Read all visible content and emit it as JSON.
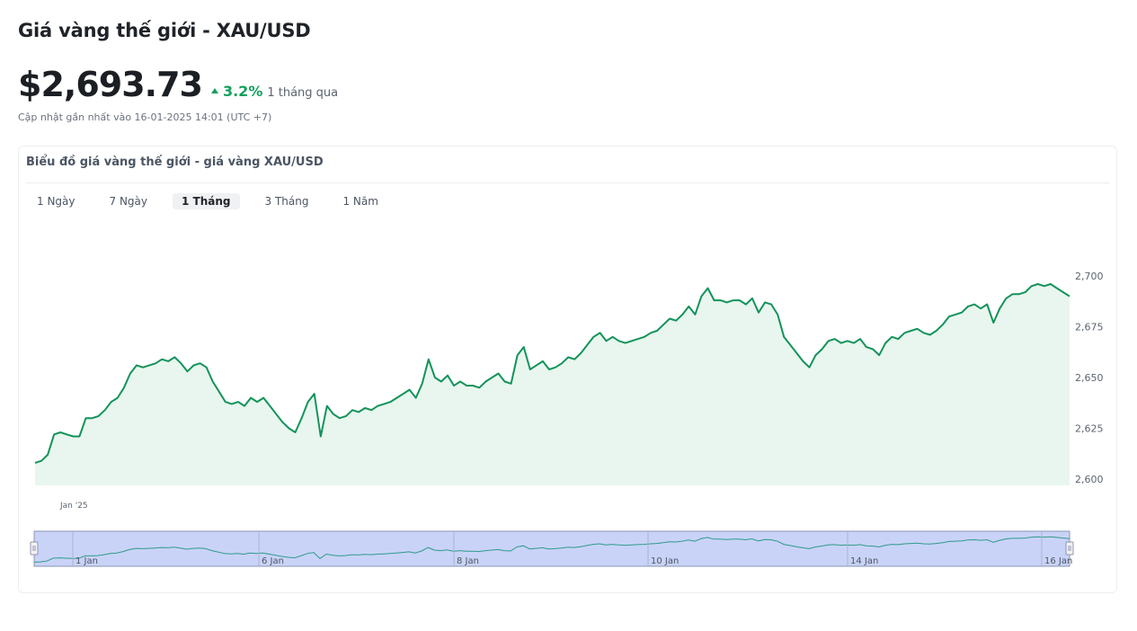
{
  "header": {
    "title": "Giá vàng thế giới - XAU/USD",
    "price": "$2,693.73",
    "change": "3.2%",
    "period": "1 tháng qua",
    "updated": "Cập nhật gần nhất vào 16-01-2025 14:01 (UTC +7)"
  },
  "card": {
    "title": "Biểu đồ giá vàng thế giới - giá vàng XAU/USD",
    "tabs": [
      {
        "label": "1 Ngày",
        "active": false
      },
      {
        "label": "7 Ngày",
        "active": false
      },
      {
        "label": "1 Tháng",
        "active": true
      },
      {
        "label": "3 Tháng",
        "active": false
      },
      {
        "label": "1 Năm",
        "active": false
      }
    ]
  },
  "colors": {
    "line": "#13935a",
    "area": "#e8f6ef",
    "up": "#13a05b",
    "navigator_fill": "#c9d3f7",
    "navigator_border": "#8d96b3"
  },
  "chart_data": {
    "type": "line",
    "title": "",
    "xlabel": "",
    "ylabel": "",
    "ylim": [
      2600,
      2700
    ],
    "y_ticks": [
      2600,
      2625,
      2650,
      2675,
      2700
    ],
    "x_label_main": "Jan '25",
    "navigator_labels": [
      "1 Jan",
      "6 Jan",
      "8 Jan",
      "10 Jan",
      "14 Jan",
      "16 Jan"
    ],
    "series": [
      {
        "values": [
          2608,
          2609,
          2612,
          2622,
          2623,
          2622,
          2621,
          2621,
          2630,
          2630,
          2631,
          2634,
          2638,
          2640,
          2645,
          2652,
          2656,
          2655,
          2656,
          2657,
          2659,
          2658,
          2660,
          2657,
          2653,
          2656,
          2657,
          2655,
          2648,
          2643,
          2638,
          2637,
          2638,
          2636,
          2640,
          2638,
          2640,
          2636,
          2632,
          2628,
          2625,
          2623,
          2630,
          2638,
          2642,
          2621,
          2636,
          2632,
          2630,
          2631,
          2634,
          2633,
          2635,
          2634,
          2636,
          2637,
          2638,
          2640,
          2642,
          2644,
          2640,
          2647,
          2659,
          2650,
          2648,
          2651,
          2646,
          2648,
          2646,
          2646,
          2645,
          2648,
          2650,
          2652,
          2648,
          2647,
          2661,
          2665,
          2654,
          2656,
          2658,
          2654,
          2655,
          2657,
          2660,
          2659,
          2662,
          2666,
          2670,
          2672,
          2668,
          2670,
          2668,
          2667,
          2668,
          2669,
          2670,
          2672,
          2673,
          2676,
          2679,
          2678,
          2681,
          2685,
          2681,
          2690,
          2694,
          2688,
          2688,
          2687,
          2688,
          2688,
          2686,
          2689,
          2682,
          2687,
          2686,
          2681,
          2670,
          2666,
          2662,
          2658,
          2655,
          2661,
          2664,
          2668,
          2669,
          2667,
          2668,
          2667,
          2669,
          2665,
          2664,
          2661,
          2667,
          2670,
          2669,
          2672,
          2673,
          2674,
          2672,
          2671,
          2673,
          2676,
          2680,
          2681,
          2682,
          2685,
          2686,
          2684,
          2686,
          2677,
          2684,
          2689,
          2691,
          2691,
          2692,
          2695,
          2696,
          2695,
          2696,
          2694,
          2692,
          2690
        ]
      }
    ]
  }
}
